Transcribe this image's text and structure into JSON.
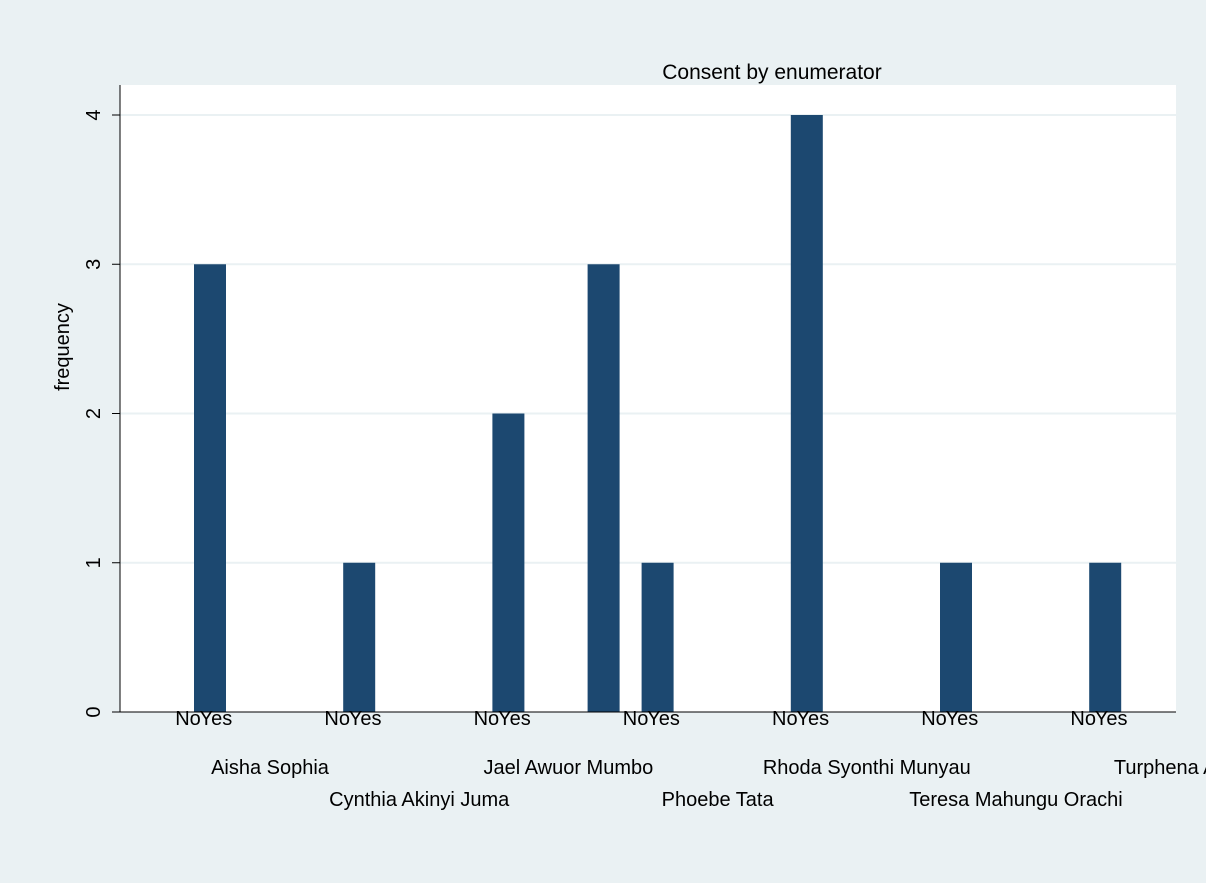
{
  "chart_data": {
    "type": "bar",
    "title": "Consent by enumerator",
    "ylabel": "frequency",
    "xlabel": "",
    "ylim": [
      0,
      4
    ],
    "yticks": [
      0,
      1,
      2,
      3,
      4
    ],
    "grid": true,
    "legend": "none",
    "colors": {
      "bar": "#1c4870",
      "plot_bg": "#ffffff",
      "outer_bg": "#eaf1f3",
      "grid": "#eaf1f3"
    },
    "groups": [
      {
        "name": "Aisha Sophia",
        "bars": [
          {
            "label": "No",
            "value": 0
          },
          {
            "label": "Yes",
            "value": 3
          }
        ]
      },
      {
        "name": "Cynthia Akinyi Juma",
        "bars": [
          {
            "label": "No",
            "value": 0
          },
          {
            "label": "Yes",
            "value": 1
          }
        ]
      },
      {
        "name": "Jael Awuor Mumbo",
        "bars": [
          {
            "label": "No",
            "value": 0
          },
          {
            "label": "Yes",
            "value": 2
          }
        ]
      },
      {
        "name": "Phoebe Tata",
        "bars": [
          {
            "label": "No",
            "value": 3
          },
          {
            "label": "Yes",
            "value": 1
          }
        ]
      },
      {
        "name": "Rhoda Syonthi Munyau",
        "bars": [
          {
            "label": "No",
            "value": 0
          },
          {
            "label": "Yes",
            "value": 4
          }
        ]
      },
      {
        "name": "Teresa Mahungu Orachi",
        "bars": [
          {
            "label": "No",
            "value": 0
          },
          {
            "label": "Yes",
            "value": 1
          }
        ]
      },
      {
        "name": "Turphena A",
        "bars": [
          {
            "label": "No",
            "value": 0
          },
          {
            "label": "Yes",
            "value": 1
          }
        ]
      }
    ]
  }
}
